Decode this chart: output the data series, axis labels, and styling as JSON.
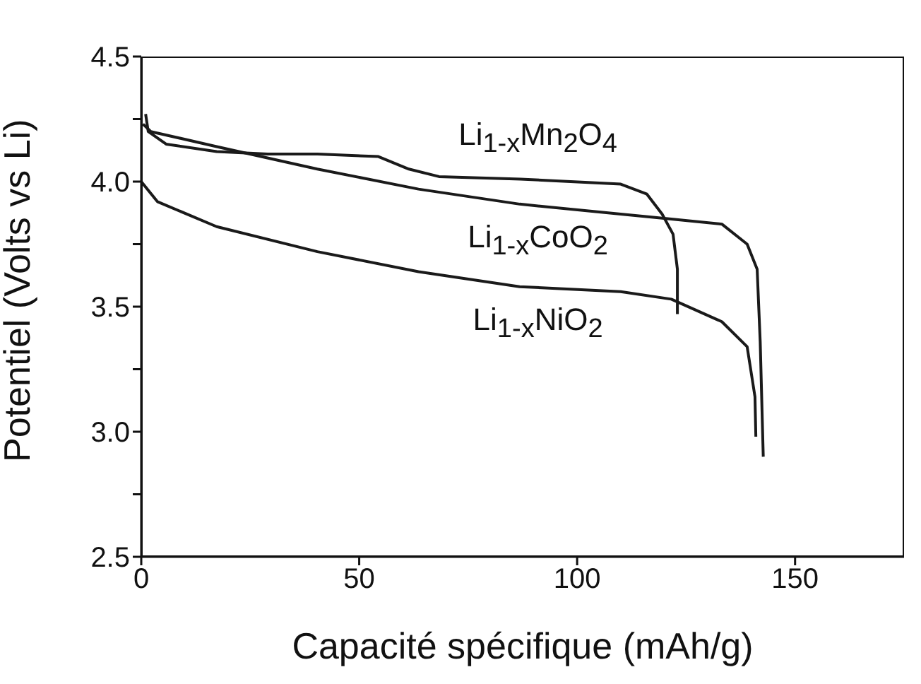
{
  "chart_data": {
    "type": "line",
    "xlabel": "Capacité spécifique (mAh/g)",
    "ylabel": "Potentiel (Volts vs Li)",
    "xlim": [
      0,
      175
    ],
    "xticks": [
      0,
      50,
      100,
      150
    ],
    "ylim": [
      2.5,
      4.5
    ],
    "yticks": [
      {
        "value": 2.5,
        "label": "2.5"
      },
      {
        "value": 2.75,
        "label": null
      },
      {
        "value": 3,
        "label": "3.0"
      },
      {
        "value": 3.25,
        "label": null
      },
      {
        "value": 3.5,
        "label": "3.5"
      },
      {
        "value": 3.75,
        "label": null
      },
      {
        "value": 4,
        "label": "4.0"
      },
      {
        "value": 4.25,
        "label": null
      },
      {
        "value": 4.5,
        "label": "4.5"
      }
    ],
    "grid": false,
    "marker": "none",
    "line_style": "solid",
    "series": [
      {
        "color": "#1a1a1a",
        "x": [
          1,
          1.6,
          5.7,
          17.3,
          29,
          40.4,
          54.4,
          61.4,
          68.3,
          87,
          110,
          116,
          119.5,
          122,
          123,
          123
        ],
        "values": [
          4.27,
          4.2,
          4.15,
          4.12,
          4.11,
          4.11,
          4.1,
          4.05,
          4.02,
          4.01,
          3.99,
          3.95,
          3.87,
          3.79,
          3.65,
          3.47
        ]
      },
      {
        "color": "#1a1a1a",
        "x": [
          0.4,
          2.2,
          17.3,
          40.4,
          63.6,
          86.8,
          110,
          121.6,
          133.2,
          139,
          141.3,
          142,
          142.7
        ],
        "values": [
          4.23,
          4.2,
          4.14,
          4.05,
          3.97,
          3.91,
          3.87,
          3.85,
          3.83,
          3.75,
          3.65,
          3.36,
          2.9
        ]
      },
      {
        "color": "#1a1a1a",
        "x": [
          0,
          3.7,
          17.3,
          40.4,
          63.6,
          86.8,
          110,
          121.6,
          133.2,
          139,
          140.8,
          141
        ],
        "values": [
          4,
          3.92,
          3.82,
          3.72,
          3.64,
          3.58,
          3.56,
          3.53,
          3.44,
          3.34,
          3.14,
          2.98
        ]
      }
    ],
    "annotations": [
      "Li$_{1-x}$Mn$_{2}$O$_{4}$",
      "Li$_{1-x}$CoO$_{2}$",
      "Li$_{1-x}$NiO$_{2}$"
    ]
  }
}
